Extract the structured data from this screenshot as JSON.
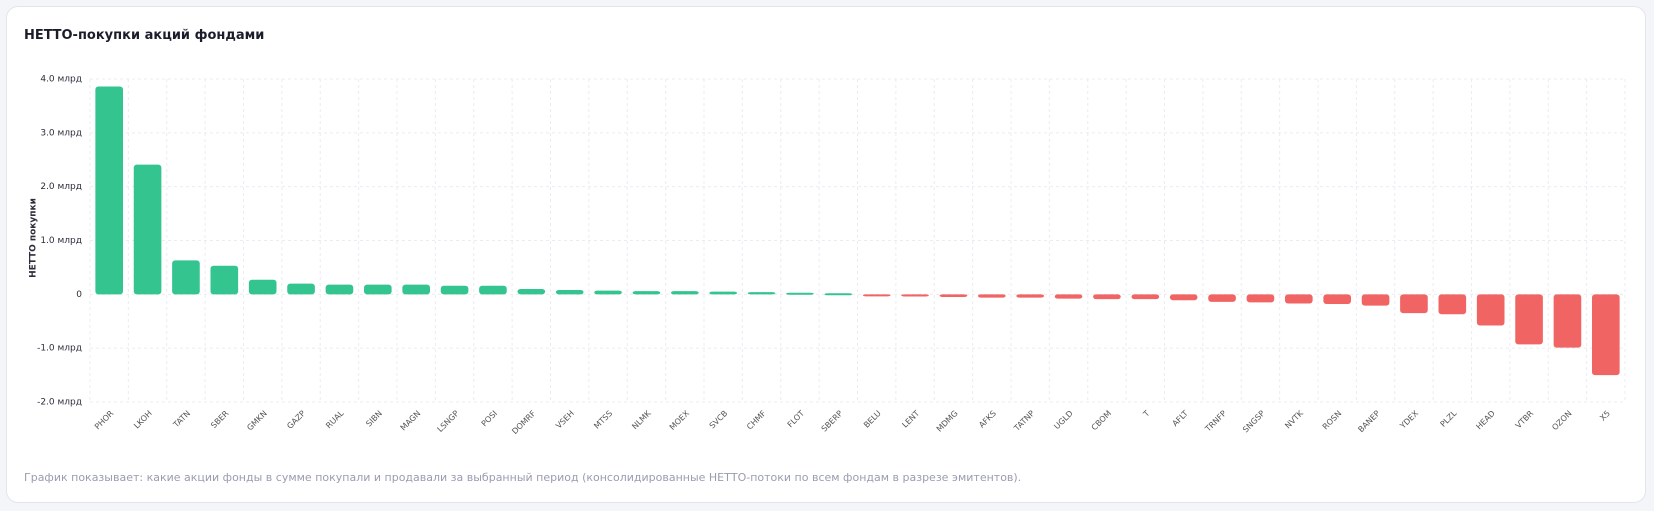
{
  "chart_data": {
    "type": "bar",
    "title": "НЕТТО-покупки акций фондами",
    "y_label": "НЕТТО покупки",
    "note": "График показывает: какие акции фонды в сумме покупали и продавали за выбранный период (консолидированные НЕТТО-потоки по всем фондам в разрезе эмитентов).",
    "categories": [
      "PHOR",
      "LKOH",
      "TATN",
      "SBER",
      "GMKN",
      "GAZP",
      "RUAL",
      "SIBN",
      "MAGN",
      "LSNGP",
      "POSI",
      "DOMRF",
      "VSEH",
      "MTSS",
      "NLMK",
      "MOEX",
      "SVCB",
      "CHMF",
      "FLOT",
      "SBERP",
      "BELU",
      "LENT",
      "MDMG",
      "AFKS",
      "TATNP",
      "UGLD",
      "CBOM",
      "T",
      "AFLT",
      "TRNFP",
      "SNGSP",
      "NVTK",
      "ROSN",
      "BANEP",
      "YDEX",
      "PLZL",
      "HEAD",
      "VTBR",
      "OZON",
      "X5"
    ],
    "values": [
      3.86,
      2.41,
      0.63,
      0.53,
      0.27,
      0.2,
      0.18,
      0.18,
      0.18,
      0.16,
      0.16,
      0.1,
      0.08,
      0.07,
      0.06,
      0.06,
      0.05,
      0.04,
      0.03,
      0.02,
      -0.03,
      -0.04,
      -0.05,
      -0.06,
      -0.06,
      -0.08,
      -0.09,
      -0.09,
      -0.11,
      -0.14,
      -0.15,
      -0.17,
      -0.18,
      -0.21,
      -0.35,
      -0.37,
      -0.58,
      -0.93,
      -0.99,
      -1.5
    ],
    "positive_color": "#34c48f",
    "negative_color": "#f06464",
    "ylim": [
      -2,
      4
    ],
    "yticks": [
      {
        "value": -2,
        "label": "-2.0 млрд"
      },
      {
        "value": -1,
        "label": "-1.0 млрд"
      },
      0,
      {
        "value": 1,
        "label": "1.0 млрд"
      },
      {
        "value": 2,
        "label": "2.0 млрд"
      },
      {
        "value": 3,
        "label": "3.0 млрд"
      },
      {
        "value": 4,
        "label": "4.0 млрд"
      }
    ],
    "grid": true
  }
}
